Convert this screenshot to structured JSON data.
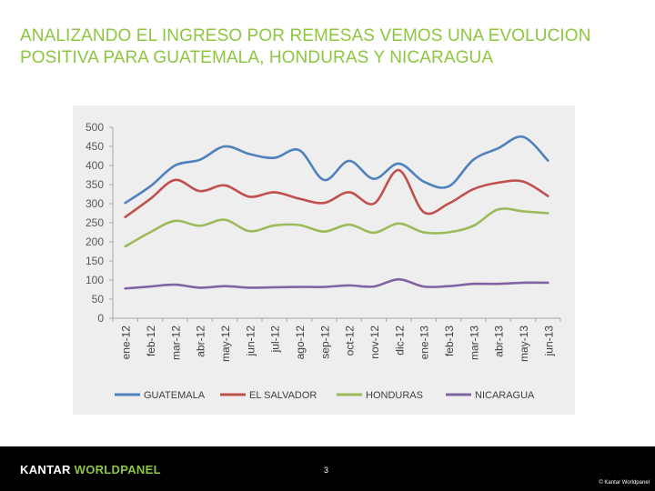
{
  "slide": {
    "title_line1": "ANALIZANDO EL INGRESO POR REMESAS VEMOS UNA EVOLUCION",
    "title_line2": "POSITIVA PARA GUATEMALA, HONDURAS Y NICARAGUA"
  },
  "footer": {
    "brand_part1": "KANTAR ",
    "brand_part2": "WORLDPANEL",
    "page_number": "3",
    "copyright": "© Kantar Worldpanel"
  },
  "chart_data": {
    "type": "line",
    "title": "",
    "xlabel": "",
    "ylabel": "",
    "ylim": [
      0,
      500
    ],
    "yticks": [
      0,
      50,
      100,
      150,
      200,
      250,
      300,
      350,
      400,
      450,
      500
    ],
    "grid": false,
    "legend_position": "bottom",
    "categories": [
      "ene-12",
      "feb-12",
      "mar-12",
      "abr-12",
      "may-12",
      "jun-12",
      "jul-12",
      "ago-12",
      "sep-12",
      "oct-12",
      "nov-12",
      "dic-12",
      "ene-13",
      "feb-13",
      "mar-13",
      "abr-13",
      "may-13",
      "jun-13"
    ],
    "series": [
      {
        "name": "GUATEMALA",
        "color": "#4f81bd",
        "values": [
          302,
          345,
          400,
          415,
          450,
          430,
          420,
          440,
          362,
          412,
          365,
          405,
          358,
          345,
          415,
          445,
          475,
          413
        ]
      },
      {
        "name": "EL SALVADOR",
        "color": "#c0504d",
        "values": [
          265,
          312,
          362,
          333,
          348,
          318,
          330,
          313,
          302,
          330,
          300,
          388,
          278,
          300,
          338,
          355,
          358,
          320
        ]
      },
      {
        "name": "HONDURAS",
        "color": "#9bbb59",
        "values": [
          188,
          225,
          255,
          242,
          258,
          228,
          243,
          244,
          227,
          245,
          224,
          248,
          225,
          225,
          242,
          285,
          280,
          275
        ]
      },
      {
        "name": "NICARAGUA",
        "color": "#8064a2",
        "values": [
          78,
          83,
          88,
          80,
          84,
          80,
          81,
          82,
          82,
          86,
          83,
          102,
          83,
          84,
          90,
          90,
          93,
          93
        ]
      }
    ]
  }
}
